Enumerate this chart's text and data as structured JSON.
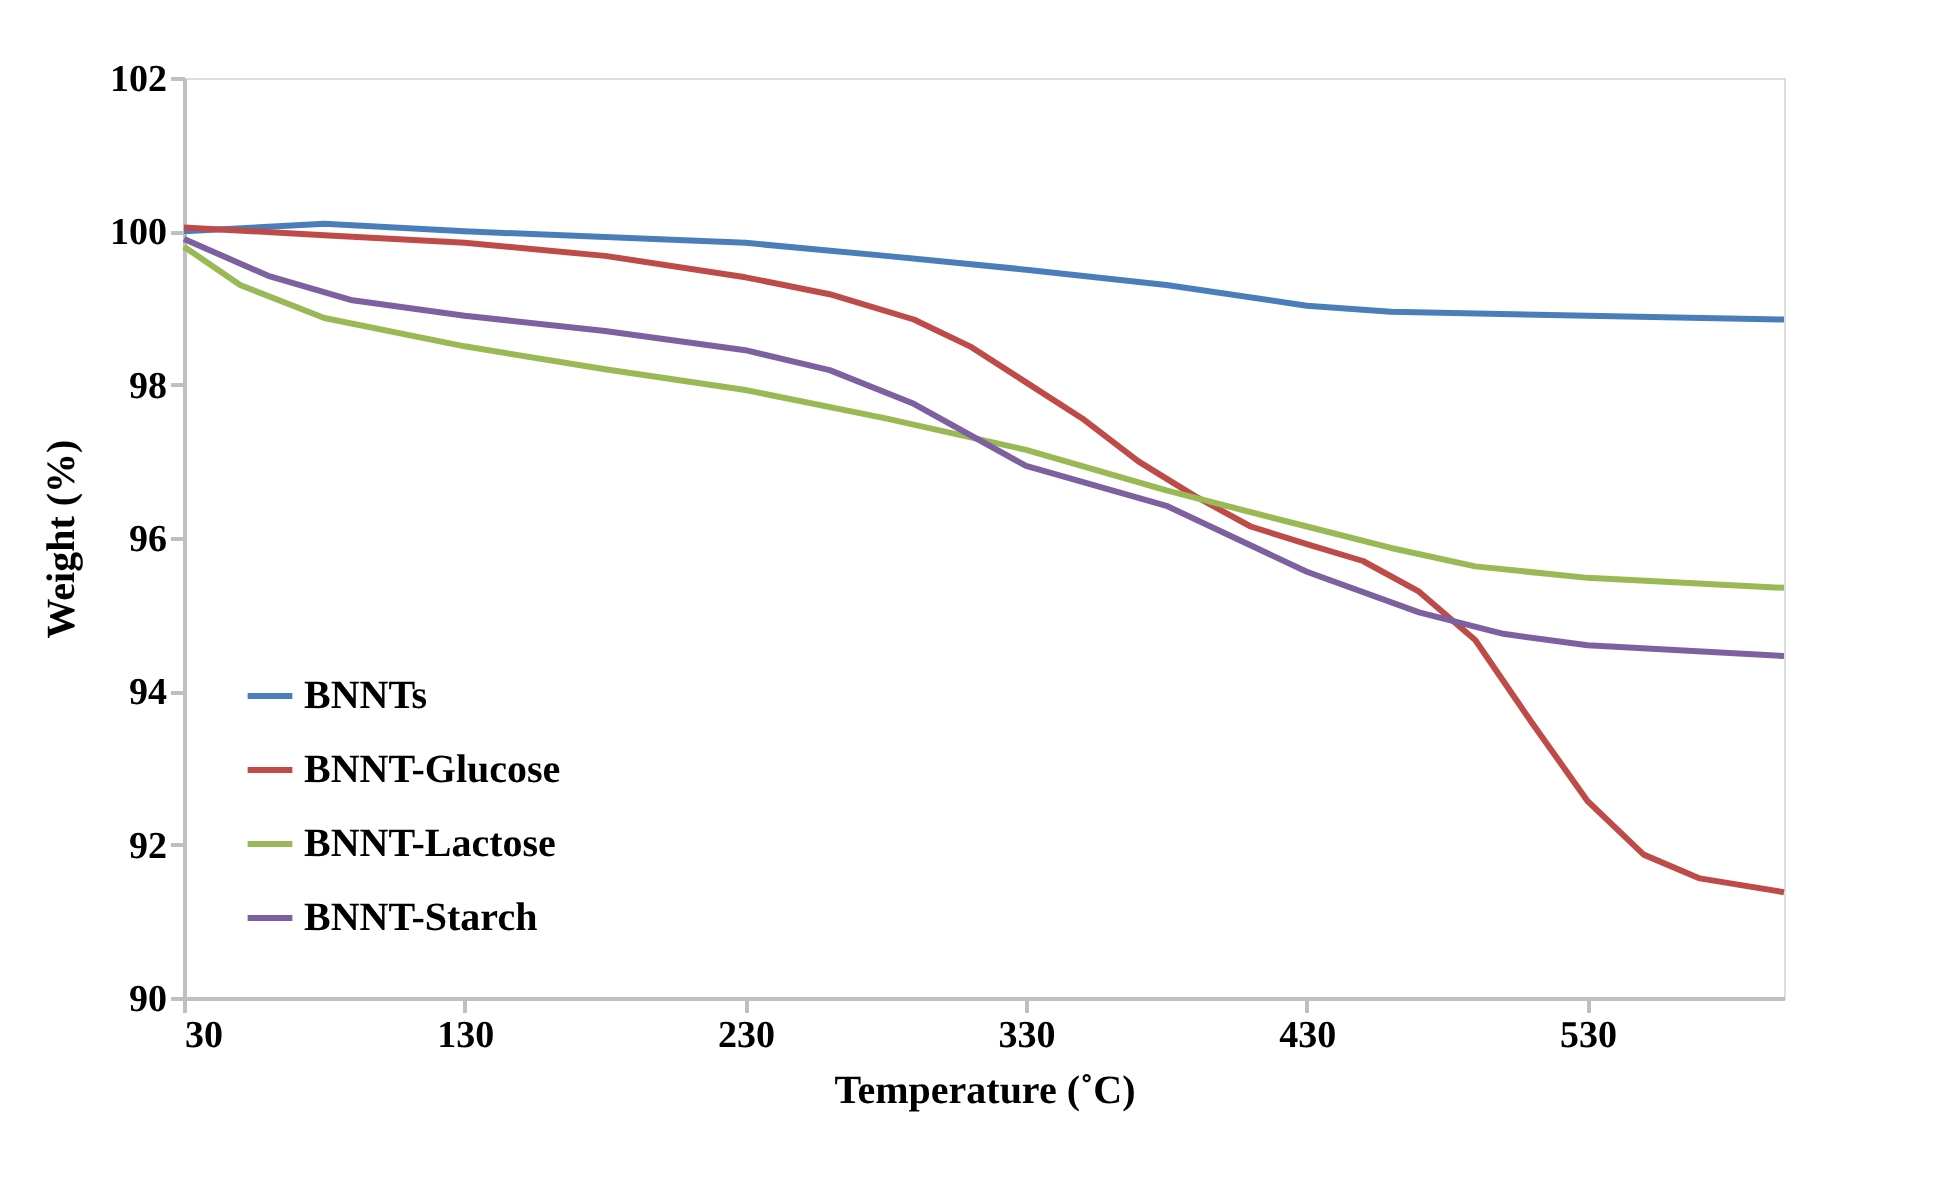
{
  "chart_data": {
    "type": "line",
    "xlabel": "Temperature (˚C)",
    "ylabel": "Weight  (%)",
    "xlim": [
      30,
      600
    ],
    "xticks": [
      30,
      130,
      230,
      330,
      430,
      530
    ],
    "ylim": [
      90,
      102
    ],
    "yticks": [
      90,
      92,
      94,
      96,
      98,
      100,
      102
    ],
    "grid": false,
    "legend": "bottom left",
    "marker": "none",
    "line_style": "solid",
    "series": [
      {
        "name": "BNNTs",
        "color": "#4a7ebb",
        "x": [
          30,
          80,
          130,
          230,
          280,
          330,
          380,
          430,
          460,
          530,
          600
        ],
        "values": [
          100.0,
          100.1,
          100.0,
          99.85,
          99.68,
          99.5,
          99.3,
          99.03,
          98.95,
          98.9,
          98.85
        ]
      },
      {
        "name": "BNNT-Glucose",
        "color": "#be4b48",
        "x": [
          30,
          80,
          130,
          180,
          230,
          260,
          290,
          310,
          330,
          350,
          370,
          390,
          410,
          430,
          450,
          470,
          490,
          510,
          530,
          550,
          570,
          600
        ],
        "values": [
          100.05,
          99.95,
          99.85,
          99.68,
          99.4,
          99.18,
          98.85,
          98.5,
          98.03,
          97.56,
          97.0,
          96.55,
          96.15,
          95.92,
          95.7,
          95.3,
          94.67,
          93.6,
          92.57,
          91.87,
          91.56,
          91.38
        ]
      },
      {
        "name": "BNNT-Lactose",
        "color": "#98b954",
        "x": [
          30,
          50,
          80,
          130,
          180,
          230,
          280,
          330,
          380,
          430,
          460,
          490,
          530,
          600
        ],
        "values": [
          99.8,
          99.3,
          98.87,
          98.5,
          98.2,
          97.93,
          97.56,
          97.15,
          96.62,
          96.15,
          95.87,
          95.63,
          95.48,
          95.35
        ]
      },
      {
        "name": "BNNT-Starch",
        "color": "#7d60a0",
        "x": [
          30,
          60,
          90,
          130,
          180,
          230,
          260,
          290,
          330,
          380,
          430,
          470,
          500,
          530,
          600
        ],
        "values": [
          99.9,
          99.42,
          99.1,
          98.9,
          98.7,
          98.45,
          98.19,
          97.75,
          96.94,
          96.42,
          95.56,
          95.03,
          94.75,
          94.6,
          94.46
        ]
      }
    ]
  }
}
